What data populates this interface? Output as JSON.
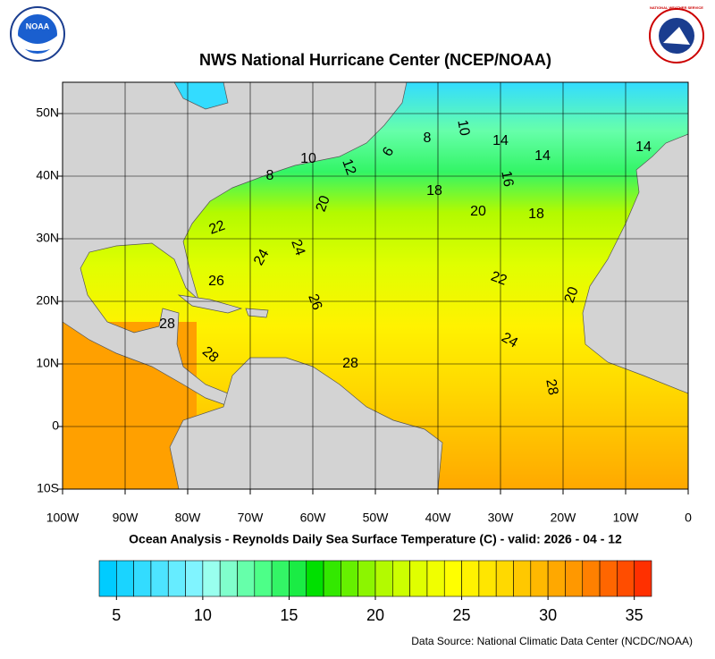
{
  "logos": {
    "left": "NOAA",
    "right": "NATIONAL WEATHER SERVICE"
  },
  "chart_data": {
    "type": "contour-map",
    "title": "NWS National Hurricane Center (NCEP/NOAA)",
    "subtitle": "Ocean Analysis - Reynolds Daily Sea Surface Temperature (C) - valid: 2026 - 04 - 12",
    "source": "Data Source: National Climatic Data Center (NCDC/NOAA)",
    "xlim": [
      -100,
      0
    ],
    "ylim": [
      -10,
      55
    ],
    "xticks": [
      {
        "value": -100,
        "label": "100W"
      },
      {
        "value": -90,
        "label": "90W"
      },
      {
        "value": -80,
        "label": "80W"
      },
      {
        "value": -70,
        "label": "70W"
      },
      {
        "value": -60,
        "label": "60W"
      },
      {
        "value": -50,
        "label": "50W"
      },
      {
        "value": -40,
        "label": "40W"
      },
      {
        "value": -30,
        "label": "30W"
      },
      {
        "value": -20,
        "label": "20W"
      },
      {
        "value": -10,
        "label": "10W"
      },
      0
    ],
    "yticks": [
      {
        "value": -10,
        "label": "10S"
      },
      0,
      {
        "value": 10,
        "label": "10N"
      },
      {
        "value": 20,
        "label": "20N"
      },
      {
        "value": 30,
        "label": "30N"
      },
      {
        "value": 40,
        "label": "40N"
      },
      {
        "value": 50,
        "label": "50N"
      }
    ],
    "grid": true,
    "contour_labels": [
      6,
      8,
      10,
      14,
      14,
      14,
      8,
      10,
      12,
      16,
      18,
      20,
      20,
      18,
      22,
      24,
      24,
      26,
      26,
      22,
      20,
      28,
      28,
      28,
      24,
      28
    ],
    "colorbar": {
      "lim": [
        4,
        36
      ],
      "ticks": [
        5,
        10,
        15,
        20,
        25,
        30,
        35
      ],
      "colors": [
        "#00ccff",
        "#1ad4ff",
        "#33dcff",
        "#4de4ff",
        "#66ecff",
        "#80f4ff",
        "#99ffee",
        "#80ffcc",
        "#66ffaa",
        "#4dff88",
        "#33f566",
        "#1aec44",
        "#00e000",
        "#33e800",
        "#66f000",
        "#8cf500",
        "#b3fa00",
        "#ccff00",
        "#e0ff00",
        "#f0ff00",
        "#ffff00",
        "#fff200",
        "#ffe600",
        "#ffd900",
        "#ffc800",
        "#ffb800",
        "#ffa800",
        "#ff9800",
        "#ff8000",
        "#ff6600",
        "#ff4d00",
        "#ff3000"
      ]
    }
  }
}
